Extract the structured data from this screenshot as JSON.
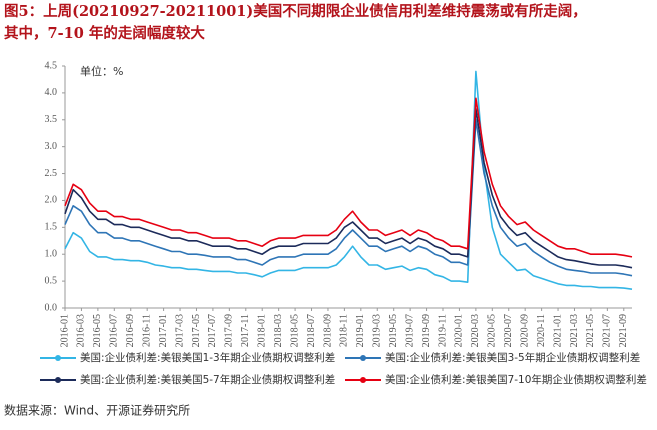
{
  "chart_data": {
    "type": "line",
    "title": [
      "图5：上周(20210927-20211001)美国不同期限企业债信用利差维持震荡或有所走阔，",
      "其中，7-10 年的走阔幅度较大"
    ],
    "annotation": "单位：%",
    "source": "数据来源：Wind、开源证券研究所",
    "x": [
      "2016-01",
      "2016-02",
      "2016-03",
      "2016-04",
      "2016-05",
      "2016-06",
      "2016-07",
      "2016-08",
      "2016-09",
      "2016-10",
      "2016-11",
      "2016-12",
      "2017-01",
      "2017-02",
      "2017-03",
      "2017-04",
      "2017-05",
      "2017-06",
      "2017-07",
      "2017-08",
      "2017-09",
      "2017-10",
      "2017-11",
      "2017-12",
      "2018-01",
      "2018-02",
      "2018-03",
      "2018-04",
      "2018-05",
      "2018-06",
      "2018-07",
      "2018-08",
      "2018-09",
      "2018-10",
      "2018-11",
      "2018-12",
      "2019-01",
      "2019-02",
      "2019-03",
      "2019-04",
      "2019-05",
      "2019-06",
      "2019-07",
      "2019-08",
      "2019-09",
      "2019-10",
      "2019-11",
      "2019-12",
      "2020-01",
      "2020-02",
      "2020-03",
      "2020-04",
      "2020-05",
      "2020-06",
      "2020-07",
      "2020-08",
      "2020-09",
      "2020-10",
      "2020-11",
      "2020-12",
      "2021-01",
      "2021-02",
      "2021-03",
      "2021-04",
      "2021-05",
      "2021-06",
      "2021-07",
      "2021-08",
      "2021-09",
      "2021-10"
    ],
    "xticks": [
      "2016-01",
      "2016-03",
      "2016-05",
      "2016-07",
      "2016-09",
      "2016-11",
      "2017-01",
      "2017-03",
      "2017-05",
      "2017-07",
      "2017-09",
      "2017-11",
      "2018-01",
      "2018-03",
      "2018-05",
      "2018-07",
      "2018-09",
      "2018-11",
      "2019-01",
      "2019-03",
      "2019-05",
      "2019-07",
      "2019-09",
      "2019-11",
      "2020-01",
      "2020-03",
      "2020-05",
      "2020-07",
      "2020-09",
      "2020-11",
      "2021-01",
      "2021-03",
      "2021-05",
      "2021-07",
      "2021-09"
    ],
    "ylim": [
      0,
      4.5
    ],
    "yticks": [
      {
        "value": 0,
        "label": "0.0"
      },
      {
        "value": 0.5,
        "label": "0.5"
      },
      {
        "value": 1,
        "label": "1.0"
      },
      {
        "value": 1.5,
        "label": "1.5"
      },
      {
        "value": 2,
        "label": "2.0"
      },
      {
        "value": 2.5,
        "label": "2.5"
      },
      {
        "value": 3,
        "label": "3.0"
      },
      {
        "value": 3.5,
        "label": "3.5"
      },
      {
        "value": 4,
        "label": "4.0"
      },
      {
        "value": 4.5,
        "label": "4.5"
      }
    ],
    "series": [
      {
        "name": "美国:企业债利差:美银美国1-3年期企业债期权调整利差",
        "color": "#33b5e5",
        "values": [
          1.1,
          1.4,
          1.3,
          1.05,
          0.95,
          0.95,
          0.9,
          0.9,
          0.88,
          0.88,
          0.85,
          0.8,
          0.78,
          0.75,
          0.75,
          0.72,
          0.72,
          0.7,
          0.68,
          0.68,
          0.68,
          0.65,
          0.65,
          0.62,
          0.58,
          0.65,
          0.7,
          0.7,
          0.7,
          0.75,
          0.75,
          0.75,
          0.75,
          0.8,
          0.95,
          1.15,
          0.95,
          0.8,
          0.8,
          0.72,
          0.75,
          0.78,
          0.7,
          0.75,
          0.72,
          0.62,
          0.58,
          0.5,
          0.5,
          0.48,
          4.4,
          2.6,
          1.5,
          1.0,
          0.85,
          0.7,
          0.72,
          0.6,
          0.55,
          0.5,
          0.45,
          0.42,
          0.42,
          0.4,
          0.4,
          0.38,
          0.38,
          0.38,
          0.37,
          0.35
        ]
      },
      {
        "name": "美国:企业债利差:美银美国3-5年期企业债期权调整利差",
        "color": "#2e75b6",
        "values": [
          1.55,
          1.9,
          1.8,
          1.55,
          1.4,
          1.4,
          1.3,
          1.3,
          1.25,
          1.25,
          1.2,
          1.15,
          1.1,
          1.05,
          1.05,
          1.0,
          1.0,
          0.98,
          0.95,
          0.95,
          0.95,
          0.9,
          0.9,
          0.85,
          0.8,
          0.9,
          0.95,
          0.95,
          0.95,
          1.0,
          1.0,
          1.0,
          1.0,
          1.1,
          1.3,
          1.45,
          1.3,
          1.15,
          1.15,
          1.05,
          1.1,
          1.15,
          1.05,
          1.15,
          1.1,
          1.0,
          0.95,
          0.85,
          0.85,
          0.8,
          3.5,
          2.5,
          1.9,
          1.5,
          1.3,
          1.15,
          1.2,
          1.05,
          0.95,
          0.85,
          0.78,
          0.72,
          0.7,
          0.68,
          0.65,
          0.65,
          0.65,
          0.65,
          0.63,
          0.6
        ]
      },
      {
        "name": "美国:企业债利差:美银美国5-7年期企业债期权调整利差",
        "color": "#1c2b5a",
        "values": [
          1.75,
          2.2,
          2.05,
          1.8,
          1.65,
          1.65,
          1.55,
          1.55,
          1.5,
          1.5,
          1.45,
          1.4,
          1.35,
          1.3,
          1.3,
          1.25,
          1.25,
          1.2,
          1.15,
          1.15,
          1.15,
          1.1,
          1.1,
          1.05,
          1.0,
          1.1,
          1.15,
          1.15,
          1.15,
          1.2,
          1.2,
          1.2,
          1.2,
          1.3,
          1.5,
          1.6,
          1.45,
          1.3,
          1.3,
          1.2,
          1.25,
          1.3,
          1.2,
          1.3,
          1.25,
          1.15,
          1.1,
          1.0,
          1.0,
          0.95,
          3.7,
          2.7,
          2.1,
          1.7,
          1.5,
          1.35,
          1.4,
          1.25,
          1.15,
          1.05,
          0.95,
          0.9,
          0.88,
          0.85,
          0.82,
          0.8,
          0.8,
          0.8,
          0.78,
          0.75
        ]
      },
      {
        "name": "美国:企业债利差:美银美国7-10年期企业债期权调整利差",
        "color": "#e60012",
        "values": [
          1.9,
          2.3,
          2.2,
          1.95,
          1.8,
          1.8,
          1.7,
          1.7,
          1.65,
          1.65,
          1.6,
          1.55,
          1.5,
          1.45,
          1.45,
          1.4,
          1.4,
          1.35,
          1.3,
          1.3,
          1.3,
          1.25,
          1.25,
          1.2,
          1.15,
          1.25,
          1.3,
          1.3,
          1.3,
          1.35,
          1.35,
          1.35,
          1.35,
          1.45,
          1.65,
          1.8,
          1.6,
          1.45,
          1.45,
          1.35,
          1.4,
          1.45,
          1.35,
          1.45,
          1.4,
          1.3,
          1.25,
          1.15,
          1.15,
          1.1,
          3.9,
          2.9,
          2.3,
          1.9,
          1.7,
          1.55,
          1.6,
          1.45,
          1.35,
          1.25,
          1.15,
          1.1,
          1.1,
          1.05,
          1.0,
          1.0,
          1.0,
          1.0,
          0.98,
          0.95
        ]
      }
    ]
  }
}
